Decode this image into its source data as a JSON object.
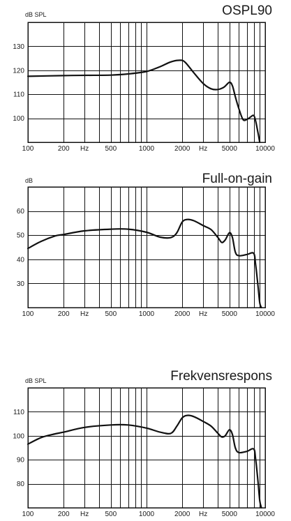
{
  "chart_data": [
    {
      "type": "line",
      "title": "OSPL90",
      "ylabel": "dB SPL",
      "xscale": "log",
      "xlim": [
        100,
        10000
      ],
      "ylim": [
        90,
        140
      ],
      "yticks": [
        100,
        110,
        120,
        130
      ],
      "xtick_labels": [
        "100",
        "200",
        "Hz",
        "500",
        "1000",
        "2000",
        "Hz",
        "5000",
        "10000"
      ],
      "grid": true,
      "series": [
        {
          "x": [
            100,
            200,
            300,
            500,
            700,
            1000,
            1300,
            1600,
            1900,
            2100,
            2500,
            3000,
            3500,
            4000,
            4500,
            5000,
            5300,
            5600,
            6000,
            6500,
            7000,
            7500,
            8000,
            8300,
            8700,
            9000
          ],
          "values": [
            117.5,
            117.8,
            117.9,
            118,
            118.5,
            119.5,
            121.5,
            123.5,
            124.2,
            123.5,
            119,
            114.5,
            112.3,
            112,
            113,
            115,
            113.5,
            109,
            104,
            99.5,
            99.5,
            100.5,
            101.2,
            99,
            94,
            90
          ]
        }
      ]
    },
    {
      "type": "line",
      "title": "Full-on-gain",
      "ylabel": "dB",
      "xscale": "log",
      "xlim": [
        100,
        10000
      ],
      "ylim": [
        20,
        70
      ],
      "yticks": [
        30,
        40,
        50,
        60
      ],
      "xtick_labels": [
        "100",
        "200",
        "Hz",
        "500",
        "1000",
        "2000",
        "Hz",
        "5000",
        "10000"
      ],
      "grid": true,
      "series": [
        {
          "x": [
            100,
            130,
            170,
            200,
            300,
            500,
            700,
            1000,
            1300,
            1600,
            1800,
            2000,
            2200,
            2500,
            3000,
            3500,
            4000,
            4300,
            4600,
            5000,
            5300,
            5600,
            6000,
            7000,
            8000,
            8300,
            8700,
            9000,
            9300
          ],
          "values": [
            44.5,
            47.5,
            49.7,
            50.3,
            51.8,
            52.5,
            52.5,
            51.2,
            49.2,
            49,
            51,
            55.5,
            56.5,
            56,
            54,
            52.3,
            49,
            47,
            48,
            51,
            49,
            43,
            41.5,
            42,
            42.5,
            38,
            29,
            22,
            20
          ]
        }
      ]
    },
    {
      "type": "line",
      "title": "Frekvensrespons",
      "ylabel": "dB SPL",
      "xscale": "log",
      "xlim": [
        100,
        10000
      ],
      "ylim": [
        70,
        120
      ],
      "yticks": [
        80,
        90,
        100,
        110
      ],
      "xtick_labels": [
        "100",
        "200",
        "Hz",
        "500",
        "1000",
        "2000",
        "Hz",
        "5000",
        "10000"
      ],
      "grid": true,
      "series": [
        {
          "x": [
            100,
            130,
            170,
            200,
            300,
            500,
            700,
            1000,
            1300,
            1600,
            1800,
            2000,
            2200,
            2500,
            3000,
            3500,
            4000,
            4300,
            4600,
            5000,
            5300,
            5600,
            6000,
            7000,
            8000,
            8300,
            8700,
            9000,
            9300
          ],
          "values": [
            96.5,
            99.3,
            100.8,
            101.5,
            103.5,
            104.5,
            104.5,
            103.2,
            101.5,
            101,
            104,
            107.5,
            108.5,
            108,
            106,
            104,
            101,
            99.5,
            100,
            102.5,
            100.5,
            95,
            93,
            93.5,
            94.5,
            90.5,
            81,
            73,
            70
          ]
        }
      ]
    }
  ]
}
